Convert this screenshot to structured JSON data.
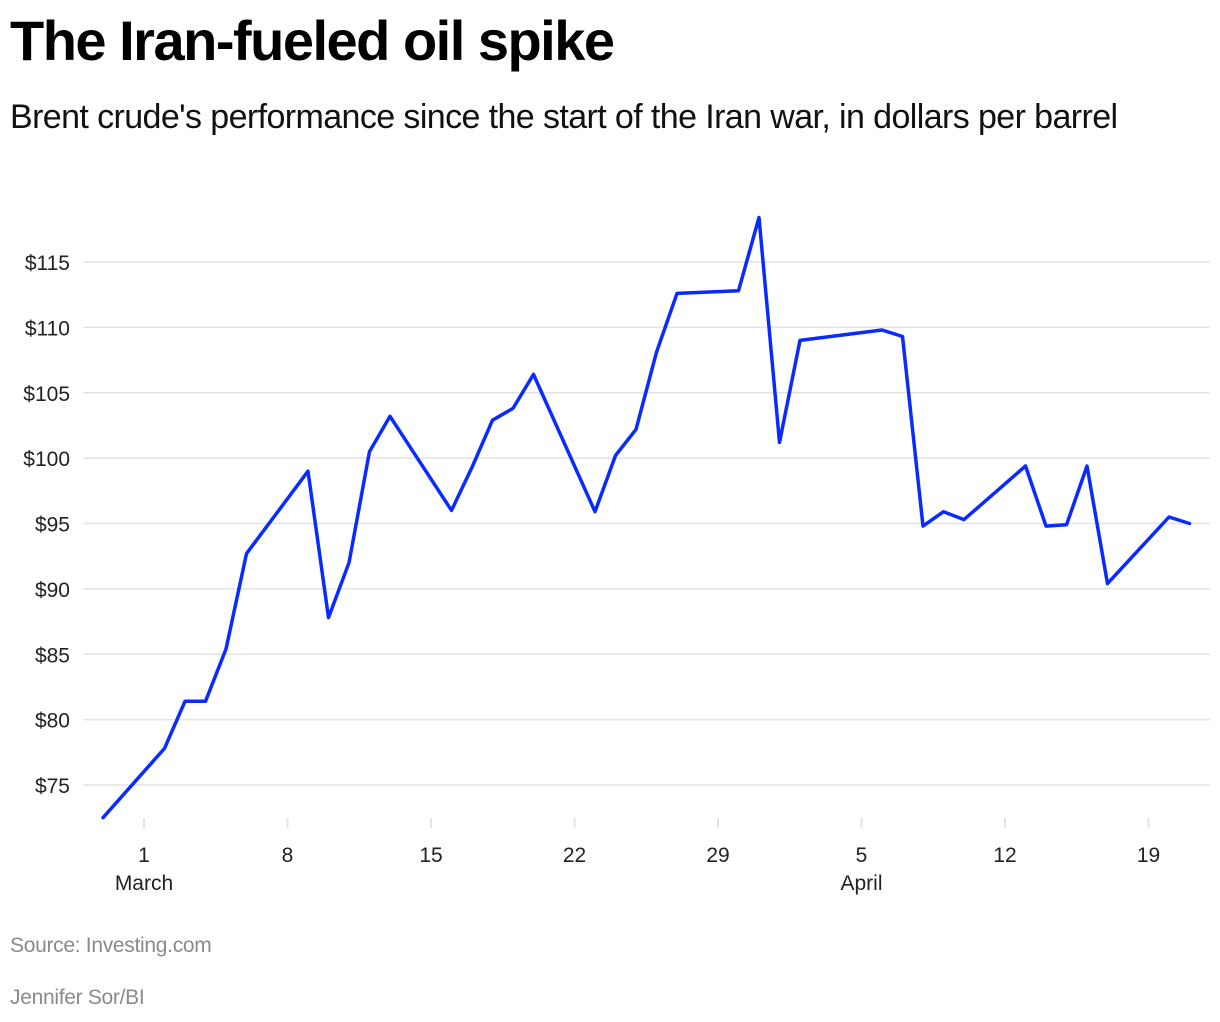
{
  "header": {
    "title": "The Iran-fueled oil spike",
    "subtitle": "Brent crude's performance since the start of the Iran war, in dollars per barrel"
  },
  "footer": {
    "source": "Source: Investing.com",
    "credit": "Jennifer Sor/BI"
  },
  "colors": {
    "line": "#0A2BFF",
    "grid": "#e3e3e3",
    "text": "#111111",
    "footer_text": "#8a8a8a"
  },
  "chart_data": {
    "type": "line",
    "title": "The Iran-fueled oil spike",
    "subtitle": "Brent crude's performance since the start of the Iran war, in dollars per barrel",
    "xlabel": "",
    "ylabel": "Dollars per barrel",
    "ylim": [
      72,
      119
    ],
    "yticks": [
      75,
      80,
      85,
      90,
      95,
      100,
      105,
      110,
      115
    ],
    "ytick_labels": [
      "$75",
      "$80",
      "$85",
      "$90",
      "$95",
      "$100",
      "$105",
      "$110",
      "$115"
    ],
    "xticks": [
      {
        "label": "1",
        "sublabel": "March",
        "day": 1
      },
      {
        "label": "8",
        "sublabel": "",
        "day": 8
      },
      {
        "label": "15",
        "sublabel": "",
        "day": 15
      },
      {
        "label": "22",
        "sublabel": "",
        "day": 22
      },
      {
        "label": "29",
        "sublabel": "",
        "day": 29
      },
      {
        "label": "5",
        "sublabel": "April",
        "day": 36
      },
      {
        "label": "12",
        "sublabel": "",
        "day": 43
      },
      {
        "label": "19",
        "sublabel": "",
        "day": 50
      }
    ],
    "grid": true,
    "legend": null,
    "series": [
      {
        "name": "Brent crude",
        "x": [
          "Feb 27",
          "Mar 2",
          "Mar 3",
          "Mar 4",
          "Mar 5",
          "Mar 6",
          "Mar 9",
          "Mar 10",
          "Mar 11",
          "Mar 12",
          "Mar 13",
          "Mar 16",
          "Mar 17",
          "Mar 18",
          "Mar 19",
          "Mar 20",
          "Mar 23",
          "Mar 24",
          "Mar 25",
          "Mar 26",
          "Mar 27",
          "Mar 30",
          "Mar 31",
          "Apr 1",
          "Apr 2",
          "Apr 6",
          "Apr 7",
          "Apr 8",
          "Apr 9",
          "Apr 10",
          "Apr 13",
          "Apr 14",
          "Apr 15",
          "Apr 16",
          "Apr 17",
          "Apr 20",
          "Apr 21"
        ],
        "day": [
          -1,
          2,
          3,
          4,
          5,
          6,
          9,
          10,
          11,
          12,
          13,
          16,
          17,
          18,
          19,
          20,
          23,
          24,
          25,
          26,
          27,
          30,
          31,
          32,
          33,
          37,
          38,
          39,
          40,
          41,
          44,
          45,
          46,
          47,
          48,
          51,
          52
        ],
        "values": [
          72.5,
          77.8,
          81.4,
          81.4,
          85.4,
          92.7,
          99.0,
          87.8,
          92.0,
          100.5,
          103.2,
          96.0,
          99.3,
          102.9,
          103.8,
          106.4,
          95.9,
          100.2,
          102.2,
          108.1,
          112.6,
          112.8,
          118.4,
          101.2,
          109.0,
          109.8,
          109.3,
          94.8,
          95.9,
          95.3,
          99.4,
          94.8,
          94.9,
          99.4,
          90.4,
          95.5,
          95.0
        ]
      }
    ]
  }
}
